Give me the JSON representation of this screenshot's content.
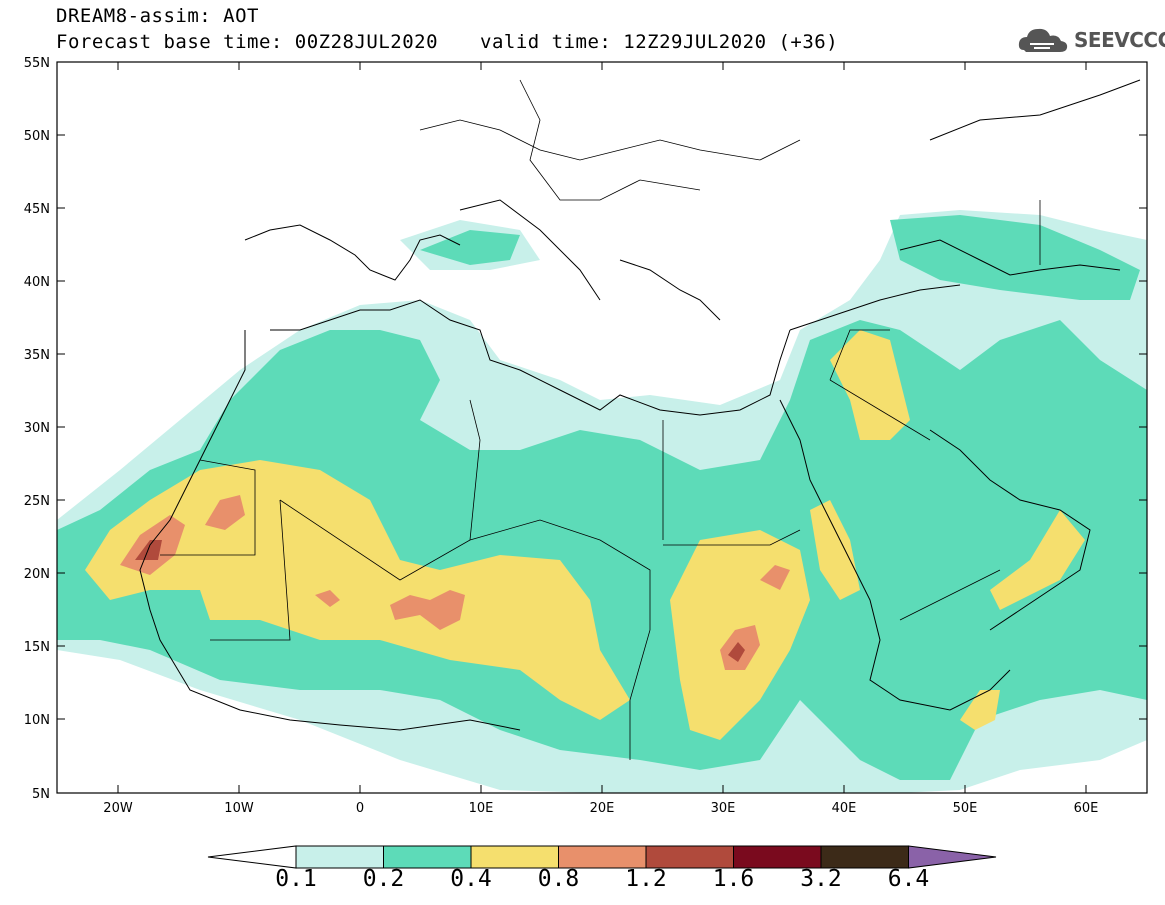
{
  "header": {
    "title": "DREAM8-assim: AOT",
    "base_time": "Forecast base time: 00Z28JUL2020",
    "valid_time": "valid time: 12Z29JUL2020 (+36)"
  },
  "logo": {
    "text": "SEEVCCC",
    "icon": "cloud-icon"
  },
  "axes": {
    "lat_labels": [
      "55N",
      "50N",
      "45N",
      "40N",
      "35N",
      "30N",
      "25N",
      "20N",
      "15N",
      "10N",
      "5N"
    ],
    "lon_labels": [
      "20W",
      "10W",
      "0",
      "10E",
      "20E",
      "30E",
      "40E",
      "50E",
      "60E"
    ]
  },
  "colorbar": {
    "labels": [
      "0.1",
      "0.2",
      "0.4",
      "0.8",
      "1.2",
      "1.6",
      "3.2",
      "6.4"
    ],
    "colors": [
      "#ffffff",
      "#c8f0ea",
      "#5ddbb8",
      "#f5df6e",
      "#e8906b",
      "#b04a3c",
      "#7a0a1e",
      "#3c2a18",
      "#8a62a8"
    ]
  }
}
